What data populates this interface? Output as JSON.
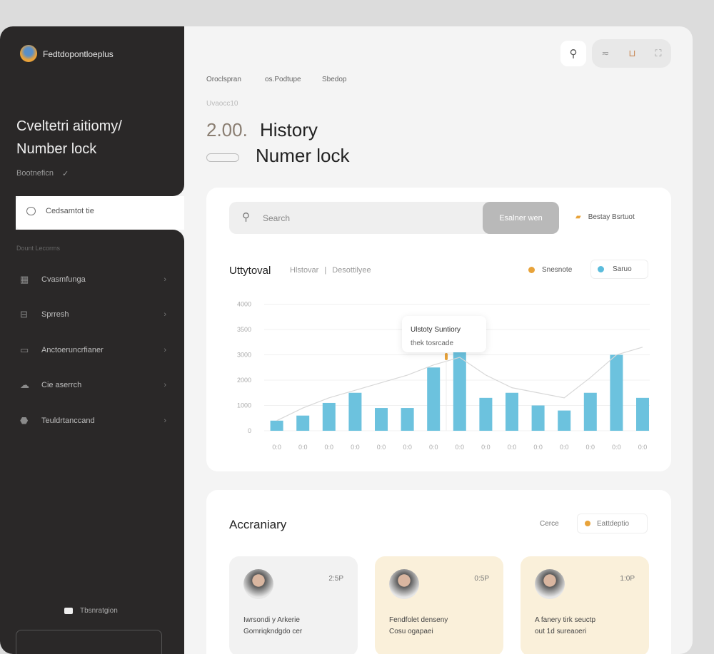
{
  "sidebar": {
    "brand": "Fedtdopontloeplus",
    "title_line1": "Cveltetri aitiomy/",
    "title_line2": "Number lock",
    "dropdown": "Bootneficn",
    "selected_item": "Cedsamtot tie",
    "section_label": "Dount Lecorms",
    "items": [
      {
        "label": "Cvasmfunga",
        "icon": "grid-icon"
      },
      {
        "label": "Sprresh",
        "icon": "server-icon"
      },
      {
        "label": "Anctoeruncrfianer",
        "icon": "calendar-icon"
      },
      {
        "label": "Cie aserrch",
        "icon": "cloud-icon"
      },
      {
        "label": "Teuldrtanccand",
        "icon": "shield-icon"
      }
    ],
    "footer": "Tbsnratgion"
  },
  "topnav": {
    "links": [
      "Oroclspran",
      "os.Podtupe",
      "Sbedop"
    ]
  },
  "header": {
    "eyebrow": "Uvaocc10",
    "value": "2.00.",
    "title": "History",
    "subtitle": "Numer lock"
  },
  "search": {
    "placeholder": "Search",
    "button": "Esalner wen",
    "side_label": "Bestay Bsrtuot"
  },
  "chart_data": {
    "type": "bar",
    "title": "Uttytoval",
    "tabs": [
      "Hlstovar",
      "Desottilyee"
    ],
    "legend": [
      {
        "name": "Snesnote",
        "color": "#e8a33a"
      },
      {
        "name": "Saruo",
        "color": "#5bbcdc"
      }
    ],
    "legend_placement": "top-right",
    "yticks": [
      "0",
      "1000",
      "2000",
      "3000",
      "3500",
      "4000"
    ],
    "ylim": [
      0,
      5000
    ],
    "categories": [
      "0:0",
      "0:0",
      "0:0",
      "0:0",
      "0:0",
      "0:0",
      "0:0",
      "0:0",
      "0:0",
      "0:0",
      "0:0",
      "0:0",
      "0:0",
      "0:0",
      "0:0"
    ],
    "series": [
      {
        "type": "bar",
        "color": "#6cc2de",
        "values": [
          400,
          600,
          1100,
          1500,
          900,
          900,
          2500,
          3100,
          1300,
          1500,
          1000,
          800,
          1500,
          3000,
          1300
        ]
      },
      {
        "type": "line",
        "color": "#d8d8d8",
        "values": [
          400,
          900,
          1300,
          1600,
          1900,
          2200,
          2600,
          2900,
          2200,
          1700,
          1500,
          1300,
          2100,
          3000,
          3300
        ]
      }
    ],
    "tooltip": {
      "title": "Ulstoty Suntiory",
      "sub": "thek tosrcade"
    },
    "grid": true
  },
  "activity": {
    "title": "Accraniary",
    "link": "Cerce",
    "filter": "Eattdeptio",
    "cards": [
      {
        "time": "2:5P",
        "line1": "Iwrsondi y Arkerie",
        "line2": "Gomriqkndgdo cer",
        "bg": "#f2f2f2"
      },
      {
        "time": "0:5P",
        "line1": "Fendfolet denseny",
        "line2": "Cosu ogapaei",
        "bg": "#faf0da"
      },
      {
        "time": "1:0P",
        "line1": "A fanery tirk seuctp",
        "line2": "out 1d sureaoeri",
        "bg": "#faf0da"
      }
    ]
  }
}
